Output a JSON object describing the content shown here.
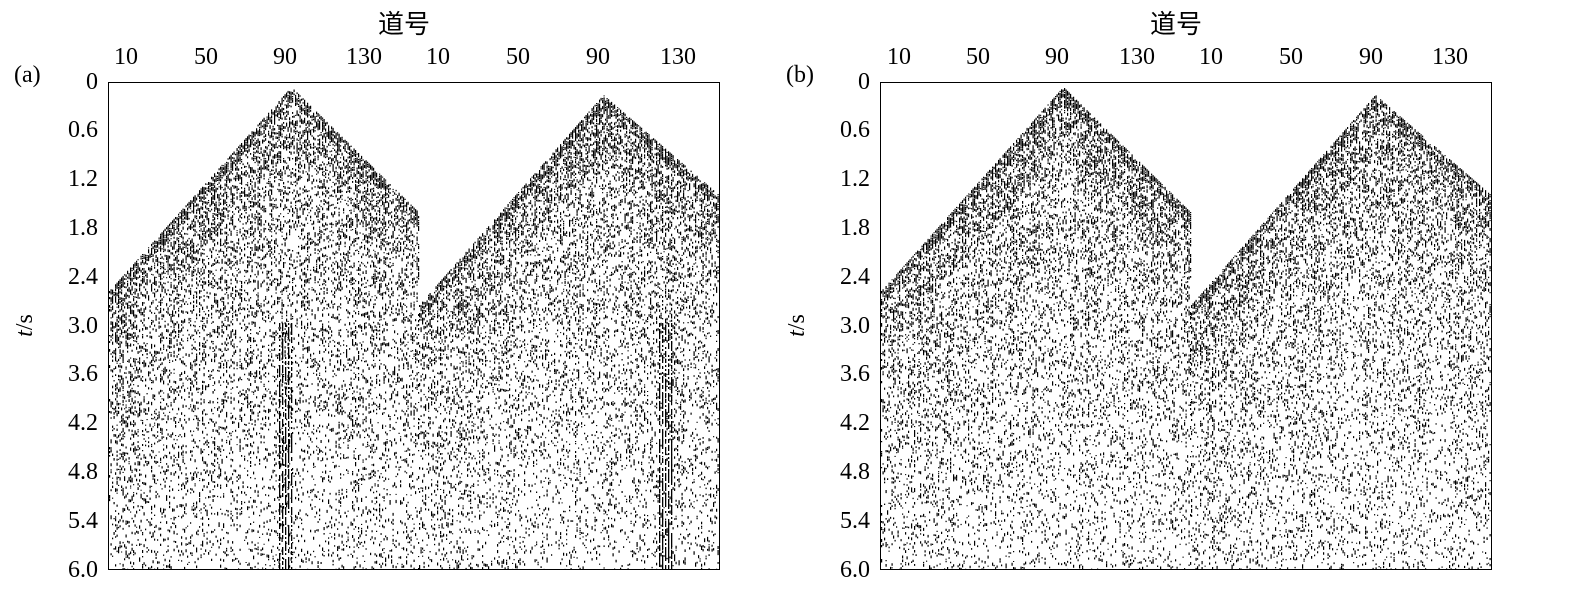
{
  "panels": [
    {
      "id": "a",
      "label": "(a)",
      "x_title": "道号",
      "y_label_italic": "t",
      "y_label_unit": "/s",
      "x_ticks": [
        "10",
        "50",
        "90",
        "130",
        "10",
        "50",
        "90",
        "130"
      ],
      "y_ticks": [
        "0",
        "0.6",
        "1.2",
        "1.8",
        "2.4",
        "3.0",
        "3.6",
        "4.2",
        "4.8",
        "5.4",
        "6.0"
      ]
    },
    {
      "id": "b",
      "label": "(b)",
      "x_title": "道号",
      "y_label_italic": "t",
      "y_label_unit": "/s",
      "x_ticks": [
        "10",
        "50",
        "90",
        "130",
        "10",
        "50",
        "90",
        "130"
      ],
      "y_ticks": [
        "0",
        "0.6",
        "1.2",
        "1.8",
        "2.4",
        "3.0",
        "3.6",
        "4.2",
        "4.8",
        "5.4",
        "6.0"
      ]
    }
  ],
  "colors": {
    "ink": "#000000",
    "background": "#ffffff"
  }
}
